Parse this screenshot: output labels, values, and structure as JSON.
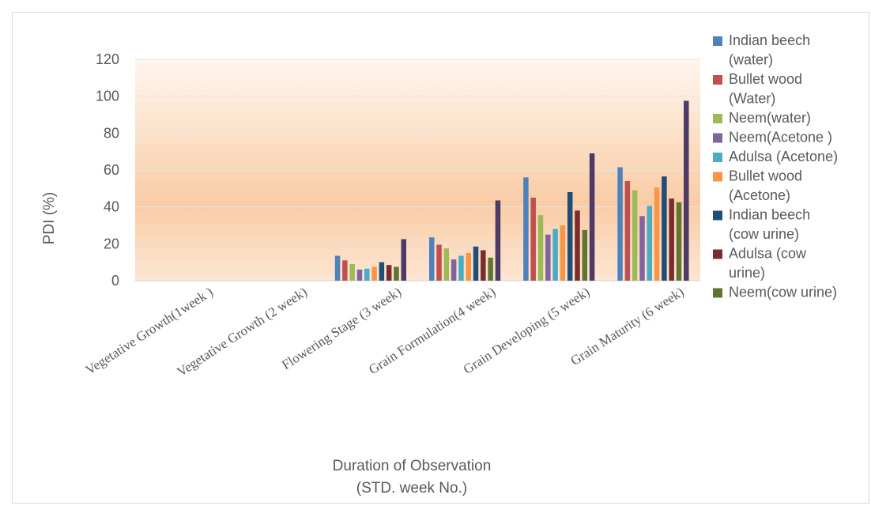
{
  "chart_data": {
    "type": "bar",
    "xlabel": [
      "Duration of Observation",
      "(STD. week No.)"
    ],
    "ylabel": "PDI (%)",
    "ylim": [
      0,
      120
    ],
    "yticks": [
      "0",
      "20",
      "40",
      "60",
      "80",
      "100",
      "120"
    ],
    "grid": "horizontal",
    "legend_position": "right",
    "categories": [
      "Vegetative Growth(1week )",
      "Vegetative Growth (2 week)",
      "Flowering Stage (3 week)",
      "Grain Formulation(4 week)",
      "Grain Developing (5 week)",
      "Grain Maturity (6 week)"
    ],
    "series": [
      {
        "name": "Indian beech (water)",
        "legend_lines": [
          "Indian beech",
          "(water)"
        ],
        "color": "#4f81bd",
        "values": [
          0,
          0,
          13.5,
          23.5,
          56,
          61.5
        ]
      },
      {
        "name": "Bullet wood (Water)",
        "legend_lines": [
          "Bullet wood",
          "(Water)"
        ],
        "color": "#c0504d",
        "values": [
          0,
          0,
          11,
          19.5,
          45,
          54
        ]
      },
      {
        "name": "Neem(water)",
        "legend_lines": [
          "Neem(water)"
        ],
        "color": "#9bbb59",
        "values": [
          0,
          0,
          9,
          17.5,
          35.5,
          49
        ]
      },
      {
        "name": "Neem(Acetone )",
        "legend_lines": [
          "Neem(Acetone )"
        ],
        "color": "#8064a2",
        "values": [
          0,
          0,
          6,
          11.5,
          25,
          35
        ]
      },
      {
        "name": "Adulsa (Acetone)",
        "legend_lines": [
          "Adulsa (Acetone)"
        ],
        "color": "#4bacc6",
        "values": [
          0,
          0,
          6.5,
          13.5,
          28,
          40.5
        ]
      },
      {
        "name": "Bullet wood (Acetone)",
        "legend_lines": [
          "Bullet wood",
          "(Acetone)"
        ],
        "color": "#f79646",
        "values": [
          0,
          0,
          7.5,
          15,
          30,
          50.5
        ]
      },
      {
        "name": "Indian beech (cow urine)",
        "legend_lines": [
          "Indian beech",
          "(cow urine)"
        ],
        "color": "#1f4e79",
        "values": [
          0,
          0,
          10,
          18.5,
          48,
          56.5
        ]
      },
      {
        "name": "Adulsa (cow urine)",
        "legend_lines": [
          "Adulsa (cow",
          "urine)"
        ],
        "color": "#7b2c2c",
        "values": [
          0,
          0,
          8.5,
          16.5,
          38,
          44.5
        ]
      },
      {
        "name": "Neem(cow urine)",
        "legend_lines": [
          "Neem(cow urine)"
        ],
        "color": "#5f7530",
        "values": [
          0,
          0,
          7.5,
          12.5,
          27.5,
          42.5
        ]
      },
      {
        "name": "",
        "legend_lines": [],
        "color": "#4e3a66",
        "values": [
          0,
          0,
          22.5,
          43.5,
          69,
          97.5
        ]
      }
    ]
  }
}
